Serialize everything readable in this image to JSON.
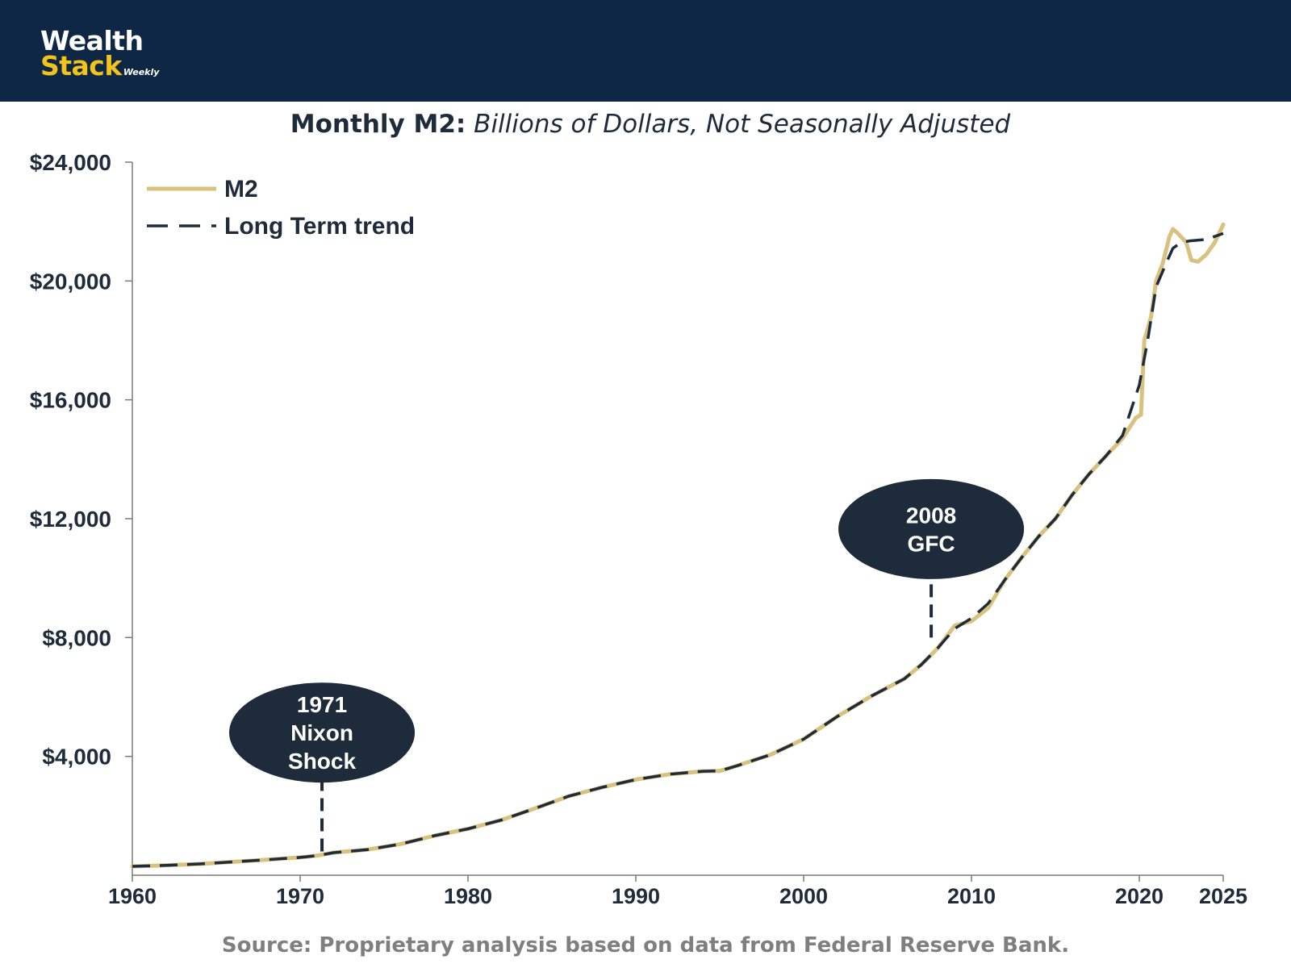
{
  "brand": {
    "line1": "Wealth",
    "line2": "Stack",
    "tagline": "Weekly",
    "bg_color": "#0e2744",
    "accent_color": "#f2c31d"
  },
  "chart_title": {
    "bold": "Monthly M2:",
    "italic": " Billions of Dollars, Not Seasonally Adjusted"
  },
  "source": "Source: Proprietary analysis based on data from Federal Reserve Bank.",
  "chart_data": {
    "type": "line",
    "title": "Monthly M2: Billions of Dollars, Not Seasonally Adjusted",
    "xlabel": "",
    "ylabel": "",
    "xlim": [
      1960,
      2025
    ],
    "ylim": [
      0,
      24000
    ],
    "x_ticks": [
      1960,
      1970,
      1980,
      1990,
      2000,
      2010,
      2020,
      2025
    ],
    "x_tick_labels": [
      "1960",
      "1970",
      "1980",
      "1990",
      "2000",
      "2010",
      "2020",
      "2025"
    ],
    "y_ticks": [
      4000,
      8000,
      12000,
      16000,
      20000,
      24000
    ],
    "y_tick_labels": [
      "$4,000",
      "$8,000",
      "$12,000",
      "$16,000",
      "$20,000",
      "$24,000"
    ],
    "legend_position": "top-left",
    "series": [
      {
        "name": "M2",
        "color": "#d9c17f",
        "style": "solid",
        "points": [
          [
            1960,
            300
          ],
          [
            1962,
            330
          ],
          [
            1964,
            380
          ],
          [
            1966,
            450
          ],
          [
            1968,
            520
          ],
          [
            1970,
            600
          ],
          [
            1971,
            660
          ],
          [
            1972,
            760
          ],
          [
            1974,
            860
          ],
          [
            1976,
            1050
          ],
          [
            1978,
            1330
          ],
          [
            1980,
            1560
          ],
          [
            1982,
            1860
          ],
          [
            1984,
            2250
          ],
          [
            1986,
            2660
          ],
          [
            1988,
            2960
          ],
          [
            1990,
            3220
          ],
          [
            1992,
            3400
          ],
          [
            1994,
            3500
          ],
          [
            1995,
            3510
          ],
          [
            1996,
            3680
          ],
          [
            1998,
            4050
          ],
          [
            2000,
            4580
          ],
          [
            2002,
            5340
          ],
          [
            2004,
            6020
          ],
          [
            2006,
            6610
          ],
          [
            2007,
            7080
          ],
          [
            2008,
            7650
          ],
          [
            2009,
            8400
          ],
          [
            2010,
            8550
          ],
          [
            2011,
            9000
          ],
          [
            2012,
            9950
          ],
          [
            2013,
            10700
          ],
          [
            2014,
            11400
          ],
          [
            2015,
            12000
          ],
          [
            2016,
            12800
          ],
          [
            2017,
            13500
          ],
          [
            2018,
            14100
          ],
          [
            2019,
            14700
          ],
          [
            2019.8,
            15400
          ],
          [
            2020.1,
            15500
          ],
          [
            2020.3,
            18000
          ],
          [
            2020.7,
            18800
          ],
          [
            2021,
            20000
          ],
          [
            2021.4,
            20600
          ],
          [
            2021.8,
            21500
          ],
          [
            2022,
            21750
          ],
          [
            2022.3,
            21600
          ],
          [
            2022.8,
            21300
          ],
          [
            2023.1,
            20700
          ],
          [
            2023.5,
            20650
          ],
          [
            2024,
            20900
          ],
          [
            2024.5,
            21300
          ],
          [
            2025,
            21900
          ]
        ]
      },
      {
        "name": "Long Term trend",
        "color": "#1d2b3a",
        "style": "dashed",
        "points": [
          [
            1960,
            300
          ],
          [
            1962,
            330
          ],
          [
            1964,
            380
          ],
          [
            1966,
            450
          ],
          [
            1968,
            520
          ],
          [
            1970,
            600
          ],
          [
            1971,
            660
          ],
          [
            1972,
            760
          ],
          [
            1974,
            860
          ],
          [
            1976,
            1050
          ],
          [
            1978,
            1330
          ],
          [
            1980,
            1560
          ],
          [
            1982,
            1860
          ],
          [
            1984,
            2250
          ],
          [
            1986,
            2660
          ],
          [
            1988,
            2960
          ],
          [
            1990,
            3220
          ],
          [
            1992,
            3400
          ],
          [
            1994,
            3500
          ],
          [
            1995,
            3510
          ],
          [
            1996,
            3680
          ],
          [
            1998,
            4050
          ],
          [
            2000,
            4580
          ],
          [
            2002,
            5340
          ],
          [
            2004,
            6020
          ],
          [
            2006,
            6610
          ],
          [
            2007,
            7080
          ],
          [
            2008,
            7650
          ],
          [
            2009,
            8300
          ],
          [
            2010,
            8650
          ],
          [
            2011,
            9150
          ],
          [
            2012,
            9950
          ],
          [
            2013,
            10700
          ],
          [
            2014,
            11400
          ],
          [
            2015,
            12000
          ],
          [
            2016,
            12800
          ],
          [
            2017,
            13500
          ],
          [
            2018,
            14100
          ],
          [
            2019,
            14800
          ],
          [
            2020,
            16500
          ],
          [
            2020.5,
            18000
          ],
          [
            2021,
            19800
          ],
          [
            2021.6,
            20600
          ],
          [
            2022,
            21100
          ],
          [
            2022.5,
            21300
          ],
          [
            2023,
            21350
          ],
          [
            2024,
            21400
          ],
          [
            2025,
            21600
          ]
        ]
      }
    ],
    "annotations": [
      {
        "x": 1971.3,
        "y_anchor": 800,
        "y_top": 3500,
        "y_center": 4800,
        "lines": [
          "1971",
          "Nixon",
          "Shock"
        ]
      },
      {
        "x": 2007.6,
        "y_anchor": 8000,
        "y_top": 10300,
        "y_center": 11650,
        "lines": [
          "2008",
          "GFC"
        ]
      }
    ],
    "annotation_color": "#1d2b3a"
  }
}
